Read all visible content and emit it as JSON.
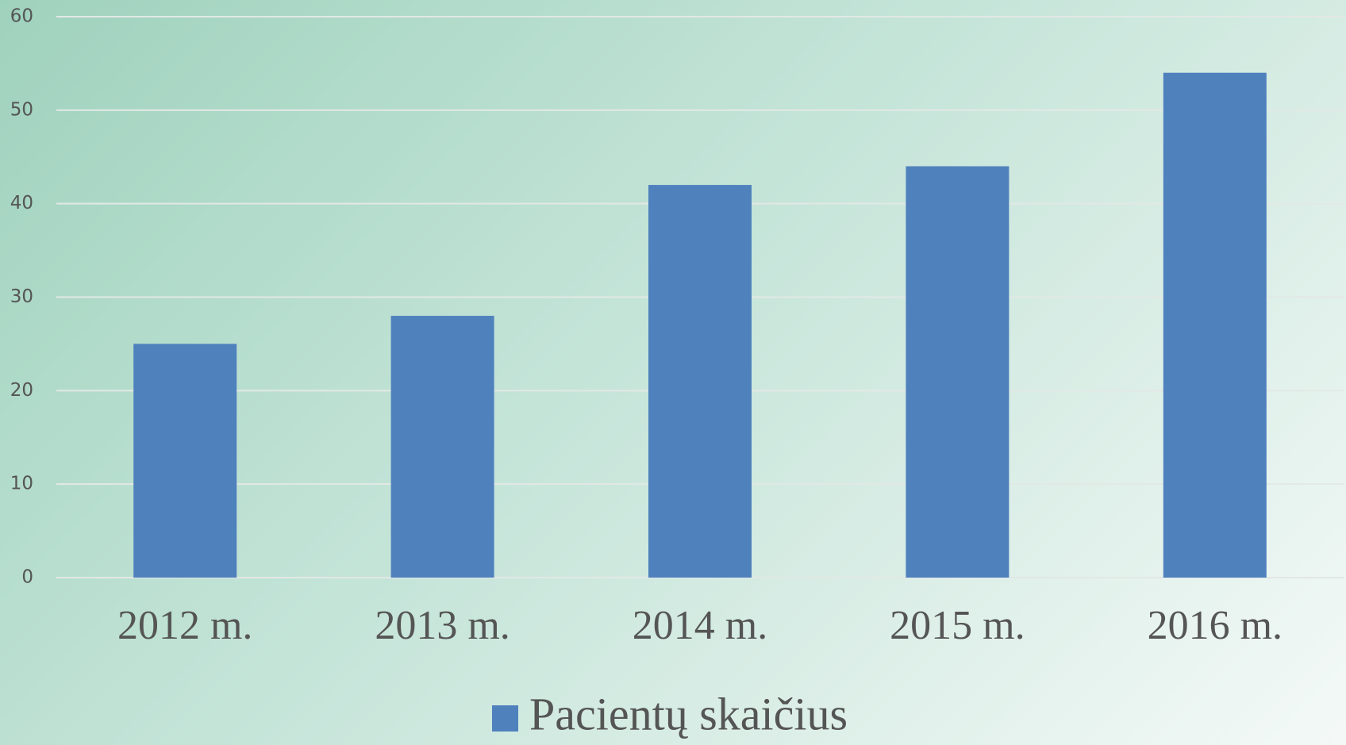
{
  "chart_data": {
    "type": "bar",
    "categories": [
      "2012 m.",
      "2013 m.",
      "2014 m.",
      "2015 m.",
      "2016 m."
    ],
    "series": [
      {
        "name": "Pacientų skaičius",
        "color": "#4f81bd",
        "values": [
          25,
          28,
          42,
          44,
          54
        ]
      }
    ],
    "ylim": [
      0,
      60
    ],
    "yticks": [
      0,
      10,
      20,
      30,
      40,
      50,
      60
    ],
    "grid": true,
    "legend": "bottom"
  }
}
